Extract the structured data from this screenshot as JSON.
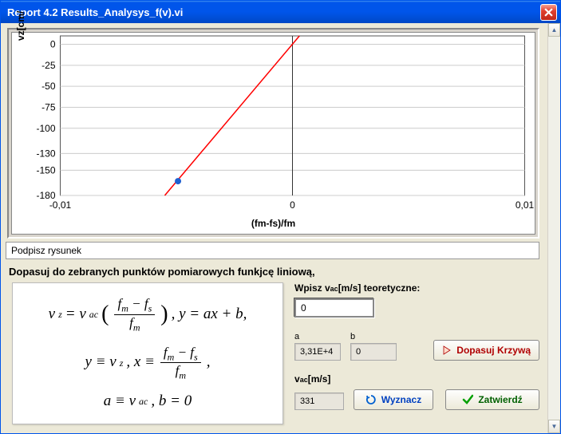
{
  "window": {
    "title": "Report 4.2 Results_Analysys_f(v).vi"
  },
  "chart": {
    "type": "scatter+line",
    "xlabel": "(fm-fs)/fm",
    "ylabel": "vz[cm/",
    "xlim": [
      -0.01,
      0.01
    ],
    "ylim": [
      -180,
      10
    ],
    "xticks": [
      -0.01,
      0,
      0.01
    ],
    "xtick_labels": [
      "-0,01",
      "0",
      "0,01"
    ],
    "yticks": [
      0,
      -25,
      -50,
      -75,
      -100,
      -130,
      -150,
      -180
    ],
    "ytick_labels": [
      "0",
      "-25",
      "-50",
      "-75",
      "-100",
      "-130",
      "-150",
      "-180"
    ],
    "grid_color": "#cccccc",
    "axis_color": "#333333",
    "background_color": "#ffffff",
    "line": {
      "color": "#ff0000",
      "width": 1.5,
      "x1": -0.0055,
      "y1": -180,
      "x2": 0.0003,
      "y2": 10
    },
    "points": [
      {
        "x": -0.00493,
        "y": -163,
        "color": "#2060d0",
        "size": 4
      }
    ],
    "label_fontsize": 12
  },
  "caption_field": "Podpisz rysunek",
  "instruction": "Dopasuj do zebranych punktów pomiarowych funkjcę liniową,",
  "controls": {
    "teor_label": "Wpisz vac[m/s] teoretyczne:",
    "teor_value": "0",
    "a_label": "a",
    "a_value": "3,31E+4",
    "b_label": "b",
    "b_value": "0",
    "fit_button": "Dopasuj Krzywą",
    "vac_label": "vac[m/s]",
    "vac_value": "331",
    "calc_button": "Wyznacz",
    "confirm_button": "Zatwierdź"
  },
  "formula": {
    "line1_left": "v",
    "line1_sub1": "z",
    "line1_eq": " = v",
    "line1_sub2": "ac",
    "line1_frac_num": "f",
    "line1_frac_num_sub1": "m",
    "line1_frac_minus": " − f",
    "line1_frac_num_sub2": "s",
    "line1_frac_den": "f",
    "line1_frac_den_sub": "m",
    "line1_right": ", y = ax + b,",
    "line2_pre": "y ≡ v",
    "line2_sub1": "z",
    "line2_mid": ", x ≡ ",
    "line2_frac_num": "f",
    "line2_frac_num_sub1": "m",
    "line2_frac_minus": " − f",
    "line2_frac_num_sub2": "s",
    "line2_frac_den": "f",
    "line2_frac_den_sub": "m",
    "line2_post": ",",
    "line3_a": "a ≡ v",
    "line3_sub": "ac",
    "line3_b": ", b = 0"
  }
}
